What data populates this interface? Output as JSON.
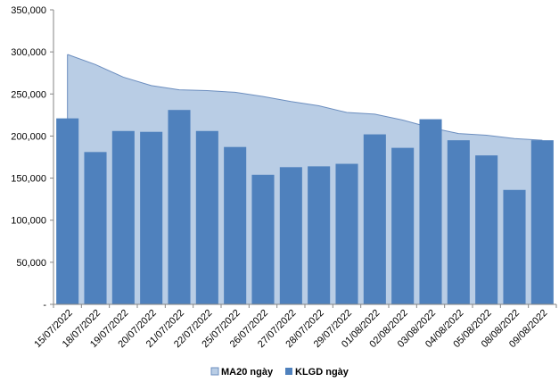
{
  "chart_data": {
    "type": "bar",
    "title": "",
    "xlabel": "",
    "ylabel": "",
    "ylim": [
      0,
      350000
    ],
    "ytick_labels": [
      "-",
      "50,000",
      "100,000",
      "150,000",
      "200,000",
      "250,000",
      "300,000",
      "350,000"
    ],
    "ytick_values": [
      0,
      50000,
      100000,
      150000,
      200000,
      250000,
      300000,
      350000
    ],
    "categories": [
      "15/07/2022",
      "18/07/2022",
      "19/07/2022",
      "20/07/2022",
      "21/07/2022",
      "22/07/2022",
      "25/07/2022",
      "26/07/2022",
      "27/07/2022",
      "28/07/2022",
      "29/07/2022",
      "01/08/2022",
      "02/08/2022",
      "03/08/2022",
      "04/08/2022",
      "05/08/2022",
      "08/08/2022",
      "09/08/2022"
    ],
    "series": [
      {
        "name": "MA20 ngày",
        "kind": "area",
        "color": "#b9cde5",
        "edge_color": "#6c8ebf",
        "values": [
          297000,
          285000,
          270000,
          260000,
          255000,
          254000,
          252000,
          247000,
          241000,
          236000,
          228000,
          226000,
          219000,
          210000,
          203000,
          201000,
          197000,
          195000
        ]
      },
      {
        "name": "KLGD ngày",
        "kind": "bar",
        "color": "#4f81bd",
        "values": [
          221000,
          181000,
          206000,
          205000,
          231000,
          206000,
          187000,
          154000,
          163000,
          164000,
          167000,
          202000,
          186000,
          220000,
          195000,
          177000,
          136000,
          195000
        ]
      }
    ],
    "grid": false,
    "legend": "bottom-center"
  }
}
